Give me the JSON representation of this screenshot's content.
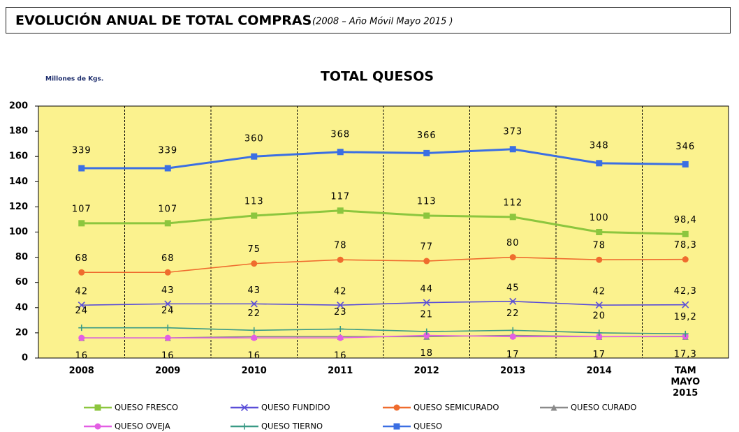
{
  "header": {
    "title": "EVOLUCIÓN ANUAL DE TOTAL COMPRAS",
    "subtitle": "(2008 – Año Móvil Mayo 2015 )"
  },
  "chart_data": {
    "type": "line",
    "title": "TOTAL QUESOS",
    "y_label": "Millones de Kgs.",
    "categories": [
      "2008",
      "2009",
      "2010",
      "2011",
      "2012",
      "2013",
      "2014",
      "TAM MAYO 2015"
    ],
    "ylim": [
      0,
      200
    ],
    "yticks": [
      0,
      20,
      40,
      60,
      80,
      100,
      120,
      140,
      160,
      180,
      200
    ],
    "y2lim": [
      0,
      450
    ],
    "background": "#fbf28e",
    "grid": false,
    "series": [
      {
        "name": "QUESO FRESCO",
        "color": "#8cc63e",
        "marker": "square",
        "values": [
          107,
          107,
          113,
          117,
          113,
          112,
          100,
          98.4
        ],
        "value_labels": [
          "107",
          "107",
          "113",
          "117",
          "113",
          "112",
          "100",
          "98,4"
        ]
      },
      {
        "name": "QUESO FUNDIDO",
        "color": "#5a4ed8",
        "marker": "x",
        "values": [
          42,
          43,
          43,
          42,
          44,
          45,
          42,
          42.3
        ],
        "value_labels": [
          "42",
          "43",
          "43",
          "42",
          "44",
          "45",
          "42",
          "42,3"
        ]
      },
      {
        "name": "QUESO SEMICURADO",
        "color": "#ef6c2e",
        "marker": "circle",
        "values": [
          68,
          68,
          75,
          78,
          77,
          80,
          78,
          78.3
        ],
        "value_labels": [
          "68",
          "68",
          "75",
          "78",
          "77",
          "80",
          "78",
          "78,3"
        ]
      },
      {
        "name": "QUESO CURADO",
        "color": "#8a8a8a",
        "marker": "triangle",
        "values": [
          16,
          16,
          17,
          17,
          17,
          18,
          17,
          17
        ]
      },
      {
        "name": "QUESO OVEJA",
        "color": "#e35ee3",
        "marker": "circle",
        "values": [
          16,
          16,
          16,
          16,
          18,
          17,
          17,
          17.3
        ],
        "value_labels": [
          "16",
          "16",
          "16",
          "16",
          "18",
          "17",
          "17",
          "17,3"
        ]
      },
      {
        "name": "QUESO TIERNO",
        "color": "#3a9a86",
        "marker": "plus",
        "values": [
          24,
          24,
          22,
          23,
          21,
          22,
          20,
          19.2
        ],
        "value_labels": [
          "24",
          "24",
          "22",
          "23",
          "21",
          "22",
          "20",
          "19,2"
        ]
      },
      {
        "name": "QUESO",
        "color": "#3b6fe3",
        "marker": "square",
        "axis": "y2",
        "values": [
          339,
          339,
          360,
          368,
          366,
          373,
          348,
          346
        ]
      }
    ]
  }
}
